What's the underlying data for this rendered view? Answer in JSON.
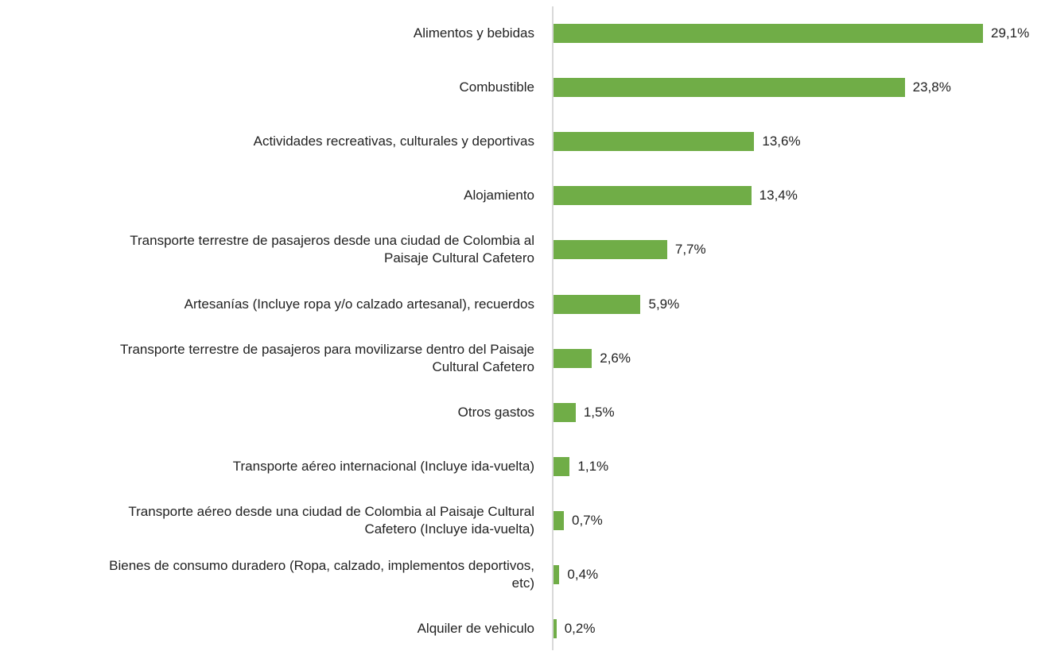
{
  "chart_data": {
    "type": "bar",
    "orientation": "horizontal",
    "color": "#70ad47",
    "categories": [
      "Alimentos y bebidas",
      "Combustible",
      "Actividades recreativas, culturales y deportivas",
      "Alojamiento",
      "Transporte terrestre de pasajeros desde una ciudad de Colombia al Paisaje Cultural Cafetero",
      "Artesanías (Incluye ropa y/o calzado artesanal), recuerdos",
      "Transporte terrestre de pasajeros para movilizarse dentro del Paisaje Cultural Cafetero",
      "Otros gastos",
      "Transporte aéreo internacional (Incluye ida-vuelta)",
      "Transporte aéreo desde una ciudad de Colombia al Paisaje Cultural Cafetero (Incluye ida-vuelta)",
      "Bienes de consumo duradero (Ropa, calzado, implementos deportivos, etc)",
      "Alquiler de vehiculo"
    ],
    "values": [
      29.1,
      23.8,
      13.6,
      13.4,
      7.7,
      5.9,
      2.6,
      1.5,
      1.1,
      0.7,
      0.4,
      0.2
    ],
    "value_labels": [
      "29,1%",
      "23,8%",
      "13,6%",
      "13,4%",
      "7,7%",
      "5,9%",
      "2,6%",
      "1,5%",
      "1,1%",
      "0,7%",
      "0,4%",
      "0,2%"
    ]
  }
}
